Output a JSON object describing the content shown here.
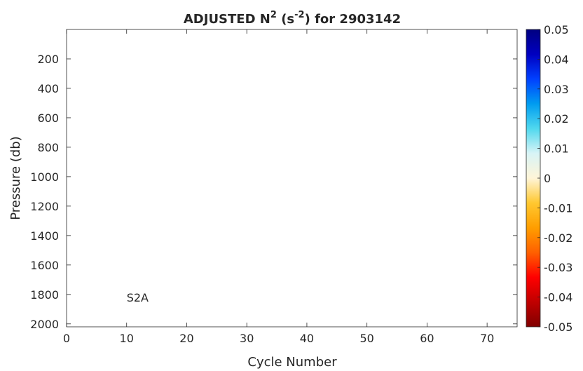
{
  "chart_data": {
    "type": "heatmap",
    "title": {
      "prefix": "ADJUSTED N",
      "sup1": "2",
      "mid": " (s",
      "sup2": "-2",
      "suffix": ") for 2903142"
    },
    "xlabel": "Cycle Number",
    "ylabel": "Pressure (db)",
    "xlim": [
      0,
      75
    ],
    "ylim": [
      2020,
      0
    ],
    "y_reversed": true,
    "xticks": [
      0,
      10,
      20,
      30,
      40,
      50,
      60,
      70
    ],
    "yticks": [
      200,
      400,
      600,
      800,
      1000,
      1200,
      1400,
      1600,
      1800,
      2000
    ],
    "grid": false,
    "annotation": {
      "text": "S2A",
      "x": 10,
      "y": 1820
    },
    "colorbar": {
      "range": [
        -0.05,
        0.05
      ],
      "ticks": [
        0.05,
        0.04,
        0.03,
        0.02,
        0.01,
        0,
        -0.01,
        -0.02,
        -0.03,
        -0.04,
        -0.05
      ],
      "tick_labels": [
        "0.05",
        "0.04",
        "0.03",
        "0.02",
        "0.01",
        "0",
        "-0.01",
        "-0.02",
        "-0.03",
        "-0.04",
        "-0.05"
      ],
      "colormap_stops": [
        "#800000",
        "#c00000",
        "#ff0000",
        "#ff6000",
        "#ff9e00",
        "#ffc830",
        "#fff5d8",
        "#d8f4f6",
        "#50d8ee",
        "#009cf0",
        "#0040ff",
        "#0000c0",
        "#000080"
      ]
    },
    "values": []
  }
}
